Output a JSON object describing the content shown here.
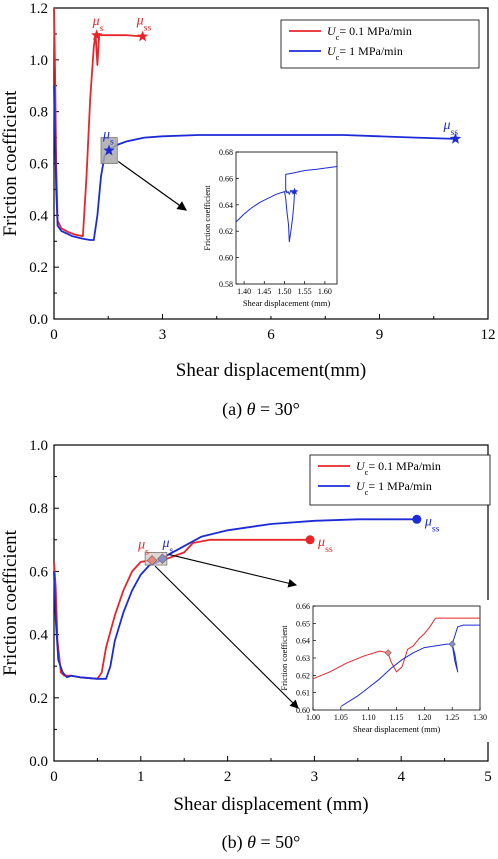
{
  "colors": {
    "red": "#e8262a",
    "blue": "#1c2bd6",
    "box": "#9a9a9a"
  },
  "chart_data": [
    {
      "id": "a",
      "type": "line",
      "caption": "(a) θ = 30°",
      "caption_parts": [
        "(a) ",
        "θ",
        " = 30°"
      ],
      "xlabel": "Shear displacement(mm)",
      "ylabel": "Friction coefficient",
      "xlim": [
        0,
        12
      ],
      "ylim": [
        0,
        1.2
      ],
      "xticks": [
        0,
        3,
        6,
        9,
        12
      ],
      "yticks": [
        0.0,
        0.2,
        0.4,
        0.6,
        0.8,
        1.0,
        1.2
      ],
      "legend_position": "top-right",
      "series": [
        {
          "name": "Uc= 0.1 MPa/min",
          "legend_main": "U",
          "legend_sub": "c",
          "legend_rest": "= 0.1 MPa/min",
          "color": "red",
          "x": [
            0,
            0.03,
            0.06,
            0.1,
            0.2,
            0.4,
            0.6,
            0.8,
            0.9,
            1.0,
            1.1,
            1.15,
            1.2,
            1.25,
            1.3,
            1.5,
            2.0,
            2.5
          ],
          "y": [
            1.2,
            0.95,
            0.6,
            0.38,
            0.35,
            0.335,
            0.325,
            0.32,
            0.55,
            0.85,
            1.05,
            1.1,
            0.98,
            1.1,
            1.095,
            1.095,
            1.095,
            1.09
          ]
        },
        {
          "name": "Uc= 1 MPa/min",
          "legend_main": "U",
          "legend_sub": "c",
          "legend_rest": "= 1 MPa/min",
          "color": "blue",
          "x": [
            0,
            0.03,
            0.06,
            0.1,
            0.2,
            0.5,
            0.8,
            1.0,
            1.1,
            1.2,
            1.3,
            1.4,
            1.5,
            1.6,
            1.8,
            2.0,
            2.5,
            3.0,
            4.0,
            5.0,
            6.0,
            7.0,
            8.0,
            9.0,
            10.0,
            11.1
          ],
          "y": [
            0.9,
            0.7,
            0.5,
            0.36,
            0.34,
            0.32,
            0.31,
            0.305,
            0.305,
            0.4,
            0.55,
            0.63,
            0.65,
            0.66,
            0.675,
            0.685,
            0.7,
            0.705,
            0.71,
            0.71,
            0.71,
            0.71,
            0.71,
            0.705,
            0.7,
            0.695
          ]
        }
      ],
      "markers": [
        {
          "label": "μs",
          "main": "μ",
          "sub": "s",
          "series": "red",
          "shape": "star",
          "x": 1.18,
          "y": 1.095
        },
        {
          "label": "μss",
          "main": "μ",
          "sub": "ss",
          "series": "red",
          "shape": "star",
          "x": 2.45,
          "y": 1.09
        },
        {
          "label": "μs",
          "main": "μ",
          "sub": "s",
          "series": "blue",
          "shape": "star",
          "x": 1.52,
          "y": 0.65
        },
        {
          "label": "μss",
          "main": "μ",
          "sub": "ss",
          "series": "blue",
          "shape": "star",
          "x": 11.1,
          "y": 0.695
        }
      ],
      "zoom_box": {
        "x": [
          1.3,
          1.75
        ],
        "y": [
          0.6,
          0.7
        ]
      },
      "inset": {
        "xlabel": "Shear displacement (mm)",
        "ylabel": "Friction coefficient",
        "xlim": [
          1.38,
          1.63
        ],
        "ylim": [
          0.58,
          0.68
        ],
        "xticks": [
          1.4,
          1.45,
          1.5,
          1.55,
          1.6
        ],
        "xtick_labels": [
          "1.40",
          "1.45",
          "1.50",
          "1.55",
          "1.60"
        ],
        "yticks": [
          0.58,
          0.6,
          0.62,
          0.64,
          0.66,
          0.68
        ],
        "ytick_labels": [
          "0.58",
          "0.60",
          "0.62",
          "0.64",
          "0.66",
          "0.68"
        ],
        "series": [
          {
            "color": "blue",
            "x": [
              1.38,
              1.4,
              1.42,
              1.44,
              1.46,
              1.48,
              1.5,
              1.503,
              1.506,
              1.51,
              1.512,
              1.515,
              1.52,
              1.523,
              1.525,
              1.52,
              1.516,
              1.512,
              1.509,
              1.506,
              1.504,
              1.503,
              1.503,
              1.503,
              1.52,
              1.55,
              1.58,
              1.63
            ],
            "y": [
              0.627,
              0.633,
              0.638,
              0.642,
              0.645,
              0.648,
              0.65,
              0.645,
              0.635,
              0.625,
              0.612,
              0.618,
              0.63,
              0.64,
              0.65,
              0.649,
              0.651,
              0.648,
              0.65,
              0.649,
              0.651,
              0.65,
              0.658,
              0.663,
              0.664,
              0.666,
              0.667,
              0.669
            ]
          }
        ],
        "markers": [
          {
            "series": "blue",
            "shape": "star",
            "x": 1.525,
            "y": 0.65
          }
        ]
      }
    },
    {
      "id": "b",
      "type": "line",
      "caption": "(b) θ = 50°",
      "caption_parts": [
        "(b) ",
        "θ",
        " = 50°"
      ],
      "xlabel": "Shear displacement (mm)",
      "ylabel": "Friction coefficient",
      "xlim": [
        0,
        5
      ],
      "ylim": [
        0,
        1.0
      ],
      "xticks": [
        0,
        1,
        2,
        3,
        4,
        5
      ],
      "yticks": [
        0.0,
        0.2,
        0.4,
        0.6,
        0.8,
        1.0
      ],
      "legend_position": "top-right",
      "series": [
        {
          "name": "Uc= 0.1 MPa/min",
          "legend_main": "U",
          "legend_sub": "c",
          "legend_rest": "= 0.1 MPa/min",
          "color": "red",
          "x": [
            0,
            0.02,
            0.04,
            0.08,
            0.12,
            0.2,
            0.3,
            0.5,
            0.55,
            0.6,
            0.7,
            0.8,
            0.9,
            1.0,
            1.08,
            1.15,
            1.2,
            1.3,
            1.5,
            1.6,
            1.8,
            2.0,
            2.5,
            2.95
          ],
          "y": [
            0.63,
            0.55,
            0.38,
            0.28,
            0.27,
            0.27,
            0.265,
            0.26,
            0.28,
            0.36,
            0.46,
            0.54,
            0.6,
            0.63,
            0.634,
            0.636,
            0.635,
            0.64,
            0.66,
            0.69,
            0.7,
            0.7,
            0.7,
            0.7
          ]
        },
        {
          "name": "Uc= 1 MPa/min",
          "legend_main": "U",
          "legend_sub": "c",
          "legend_rest": "= 1 MPa/min",
          "color": "blue",
          "x": [
            0,
            0.02,
            0.05,
            0.1,
            0.15,
            0.2,
            0.3,
            0.5,
            0.6,
            0.65,
            0.7,
            0.8,
            0.9,
            1.0,
            1.1,
            1.2,
            1.25,
            1.3,
            1.5,
            1.7,
            2.0,
            2.5,
            3.0,
            3.5,
            4.0,
            4.2
          ],
          "y": [
            0.6,
            0.45,
            0.32,
            0.28,
            0.265,
            0.27,
            0.265,
            0.26,
            0.26,
            0.3,
            0.38,
            0.47,
            0.54,
            0.59,
            0.62,
            0.63,
            0.64,
            0.65,
            0.68,
            0.71,
            0.73,
            0.75,
            0.76,
            0.765,
            0.765,
            0.765
          ]
        }
      ],
      "markers": [
        {
          "label": "μs",
          "main": "μ",
          "sub": "s",
          "series": "red",
          "shape": "diamond",
          "x": 1.13,
          "y": 0.635
        },
        {
          "label": "μss",
          "main": "μ",
          "sub": "ss",
          "series": "red",
          "shape": "circle",
          "x": 2.95,
          "y": 0.7
        },
        {
          "label": "μs",
          "main": "μ",
          "sub": "s",
          "series": "blue",
          "shape": "diamond",
          "x": 1.25,
          "y": 0.64
        },
        {
          "label": "μss",
          "main": "μ",
          "sub": "ss",
          "series": "blue",
          "shape": "circle",
          "x": 4.18,
          "y": 0.765
        }
      ],
      "zoom_box": {
        "x": [
          1.05,
          1.3
        ],
        "y": [
          0.62,
          0.66
        ]
      },
      "inset": {
        "xlabel": "Shear displacement (mm)",
        "ylabel": "Friction coefficient",
        "xlim": [
          1.0,
          1.3
        ],
        "ylim": [
          0.6,
          0.66
        ],
        "xticks": [
          1.0,
          1.05,
          1.1,
          1.15,
          1.2,
          1.25,
          1.3
        ],
        "xtick_labels": [
          "1.00",
          "1.05",
          "1.10",
          "1.15",
          "1.20",
          "1.25",
          "1.30"
        ],
        "yticks": [
          0.6,
          0.61,
          0.62,
          0.63,
          0.64,
          0.65,
          0.66
        ],
        "ytick_labels": [
          "0.60",
          "0.61",
          "0.62",
          "0.63",
          "0.64",
          "0.65",
          "0.66"
        ],
        "series": [
          {
            "color": "red",
            "x": [
              1.0,
              1.03,
              1.06,
              1.09,
              1.12,
              1.135,
              1.14,
              1.15,
              1.16,
              1.165,
              1.17,
              1.18,
              1.19,
              1.2,
              1.21,
              1.22,
              1.23,
              1.25,
              1.28,
              1.3
            ],
            "y": [
              0.618,
              0.622,
              0.627,
              0.631,
              0.634,
              0.633,
              0.628,
              0.622,
              0.625,
              0.63,
              0.635,
              0.637,
              0.641,
              0.644,
              0.648,
              0.653,
              0.653,
              0.653,
              0.653,
              0.653
            ]
          },
          {
            "color": "blue",
            "x": [
              1.05,
              1.08,
              1.1,
              1.12,
              1.14,
              1.16,
              1.18,
              1.2,
              1.22,
              1.24,
              1.25,
              1.255,
              1.26,
              1.255,
              1.25,
              1.26,
              1.27,
              1.28,
              1.3
            ],
            "y": [
              0.602,
              0.608,
              0.613,
              0.618,
              0.624,
              0.629,
              0.633,
              0.636,
              0.637,
              0.638,
              0.638,
              0.632,
              0.622,
              0.628,
              0.638,
              0.648,
              0.649,
              0.649,
              0.649
            ]
          }
        ],
        "markers": [
          {
            "series": "red",
            "shape": "diamond",
            "x": 1.135,
            "y": 0.633
          },
          {
            "series": "blue",
            "shape": "diamond",
            "x": 1.25,
            "y": 0.638
          }
        ]
      }
    }
  ]
}
